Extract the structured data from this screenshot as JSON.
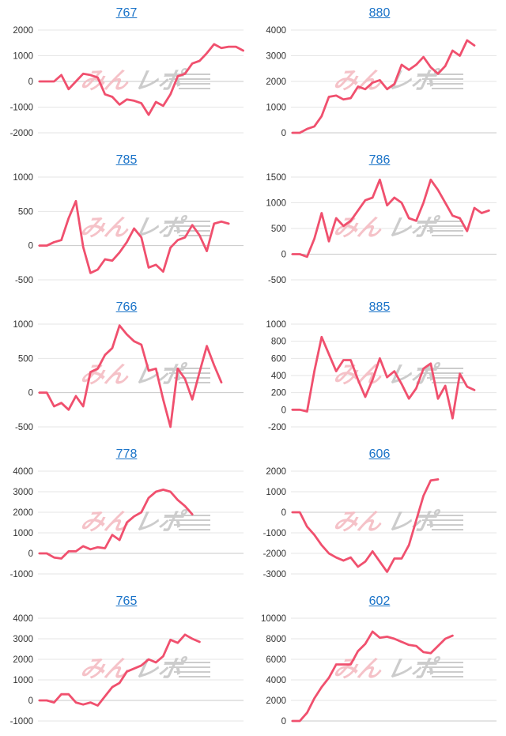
{
  "style": {
    "line_color": "#f0506e",
    "grid_color": "#e6e6e6",
    "zero_color": "#c8c8c8",
    "title_color": "#1a73c8",
    "watermark_red": "#f4b8bf",
    "watermark_gray": "#c4c4c4"
  },
  "watermark": {
    "text": "みんレポ"
  },
  "chart_data": [
    {
      "type": "line",
      "title": "767",
      "ylim": [
        -2000,
        2000
      ],
      "yticks": [
        "2000",
        "1000",
        "0",
        "-1000",
        "-2000"
      ],
      "values": [
        0,
        0,
        0,
        250,
        -300,
        0,
        300,
        250,
        150,
        -500,
        -600,
        -900,
        -700,
        -750,
        -850,
        -1300,
        -800,
        -950,
        -500,
        200,
        300,
        700,
        800,
        1100,
        1450,
        1300,
        1350,
        1350,
        1200
      ]
    },
    {
      "type": "line",
      "title": "880",
      "ylim": [
        0,
        4000
      ],
      "yticks": [
        "4000",
        "3000",
        "2000",
        "1000",
        "0"
      ],
      "values": [
        0,
        0,
        150,
        250,
        650,
        1400,
        1450,
        1300,
        1350,
        1800,
        1700,
        1950,
        2050,
        1700,
        1900,
        2650,
        2450,
        2650,
        2950,
        2550,
        2300,
        2600,
        3200,
        3000,
        3600,
        3400
      ]
    },
    {
      "type": "line",
      "title": "785",
      "ylim": [
        -500,
        1000
      ],
      "yticks": [
        "1000",
        "500",
        "0",
        "-500"
      ],
      "values": [
        0,
        0,
        50,
        80,
        400,
        650,
        -20,
        -400,
        -350,
        -200,
        -220,
        -100,
        50,
        250,
        120,
        -320,
        -280,
        -380,
        -30,
        80,
        120,
        300,
        150,
        -80,
        320,
        350,
        320
      ]
    },
    {
      "type": "line",
      "title": "786",
      "ylim": [
        -500,
        1500
      ],
      "yticks": [
        "1500",
        "1000",
        "500",
        "0",
        "-500"
      ],
      "values": [
        0,
        0,
        -50,
        300,
        800,
        250,
        700,
        550,
        650,
        850,
        1050,
        1100,
        1450,
        950,
        1100,
        1000,
        700,
        650,
        1000,
        1450,
        1250,
        1000,
        750,
        700,
        450,
        900,
        800,
        850
      ]
    },
    {
      "type": "line",
      "title": "766",
      "ylim": [
        -500,
        1000
      ],
      "yticks": [
        "1000",
        "500",
        "0",
        "-500"
      ],
      "values": [
        0,
        0,
        -200,
        -150,
        -250,
        -50,
        -200,
        300,
        350,
        550,
        650,
        980,
        850,
        750,
        700,
        320,
        350,
        -100,
        -500,
        350,
        200,
        -100,
        300,
        680,
        400,
        150
      ]
    },
    {
      "type": "line",
      "title": "885",
      "ylim": [
        -200,
        1000
      ],
      "yticks": [
        "1000",
        "800",
        "600",
        "400",
        "200",
        "0",
        "-200"
      ],
      "values": [
        0,
        0,
        -20,
        450,
        850,
        650,
        450,
        580,
        580,
        350,
        150,
        350,
        600,
        380,
        450,
        300,
        130,
        250,
        480,
        540,
        130,
        280,
        -100,
        420,
        270,
        230
      ]
    },
    {
      "type": "line",
      "title": "778",
      "ylim": [
        -1000,
        4000
      ],
      "yticks": [
        "4000",
        "3000",
        "2000",
        "1000",
        "0",
        "-1000"
      ],
      "values": [
        0,
        0,
        -200,
        -250,
        100,
        100,
        350,
        200,
        300,
        250,
        900,
        650,
        1500,
        1800,
        2000,
        2700,
        3000,
        3100,
        3000,
        2600,
        2300,
        1900
      ]
    },
    {
      "type": "line",
      "title": "606",
      "ylim": [
        -3000,
        2000
      ],
      "yticks": [
        "2000",
        "1000",
        "0",
        "-1000",
        "-2000",
        "-3000"
      ],
      "values": [
        0,
        0,
        -700,
        -1100,
        -1600,
        -2000,
        -2200,
        -2350,
        -2200,
        -2650,
        -2400,
        -1900,
        -2400,
        -2900,
        -2250,
        -2250,
        -1600,
        -400,
        800,
        1550,
        1600
      ]
    },
    {
      "type": "line",
      "title": "765",
      "ylim": [
        -1000,
        4000
      ],
      "yticks": [
        "4000",
        "3000",
        "2000",
        "1000",
        "0",
        "-1000"
      ],
      "values": [
        0,
        0,
        -100,
        300,
        300,
        -100,
        -200,
        -100,
        -250,
        200,
        650,
        850,
        1400,
        1550,
        1700,
        2000,
        1850,
        2150,
        2950,
        2800,
        3200,
        3000,
        2850
      ]
    },
    {
      "type": "line",
      "title": "602",
      "ylim": [
        0,
        10000
      ],
      "yticks": [
        "10000",
        "8000",
        "6000",
        "4000",
        "2000",
        "0"
      ],
      "values": [
        0,
        0,
        800,
        2200,
        3300,
        4200,
        5500,
        5500,
        5500,
        6800,
        7500,
        8700,
        8100,
        8200,
        8000,
        7700,
        7400,
        7300,
        6700,
        6600,
        7300,
        8000,
        8300
      ]
    }
  ]
}
